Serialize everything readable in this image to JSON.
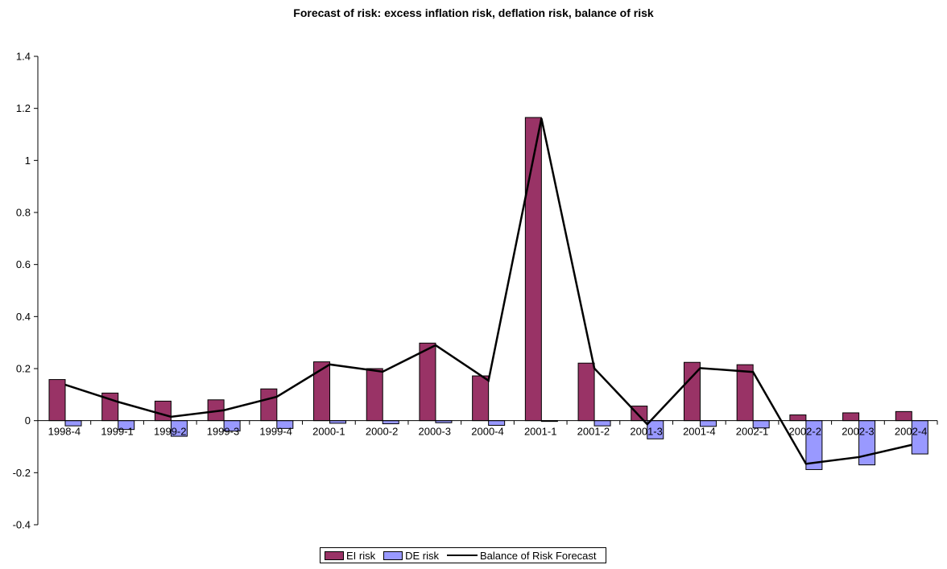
{
  "chart_data": {
    "type": "bar",
    "title": "Forecast of risk: excess inflation risk, deflation risk, balance of risk",
    "xlabel": "",
    "ylabel": "",
    "ylim": [
      -0.4,
      1.4
    ],
    "yticks": [
      -0.4,
      -0.2,
      0,
      0.2,
      0.4,
      0.6,
      0.8,
      1,
      1.2,
      1.4
    ],
    "ytick_labels": [
      "-0.4",
      "-0.2",
      "0",
      "0.2",
      "0.4",
      "0.6",
      "0.8",
      "1",
      "1.2",
      "1.4"
    ],
    "categories": [
      "1998-4",
      "1999-1",
      "1999-2",
      "1999-3",
      "1999-4",
      "2000-1",
      "2000-2",
      "2000-3",
      "2000-4",
      "2001-1",
      "2001-2",
      "2001-3",
      "2001-4",
      "2002-1",
      "2002-2",
      "2002-3",
      "2002-4"
    ],
    "series": [
      {
        "name": "EI risk",
        "kind": "bar",
        "color": "#993366",
        "values": [
          0.158,
          0.106,
          0.075,
          0.08,
          0.122,
          0.226,
          0.2,
          0.298,
          0.172,
          1.165,
          0.221,
          0.056,
          0.224,
          0.215,
          0.022,
          0.03,
          0.035
        ]
      },
      {
        "name": "DE risk",
        "kind": "bar",
        "color": "#9999ff",
        "values": [
          -0.02,
          -0.034,
          -0.06,
          -0.04,
          -0.03,
          -0.01,
          -0.012,
          -0.008,
          -0.018,
          -0.003,
          -0.02,
          -0.07,
          -0.022,
          -0.028,
          -0.188,
          -0.17,
          -0.128
        ]
      },
      {
        "name": "Balance of Risk Forecast",
        "kind": "line",
        "color": "#000000",
        "values": [
          0.138,
          0.072,
          0.015,
          0.04,
          0.092,
          0.216,
          0.188,
          0.29,
          0.154,
          1.162,
          0.201,
          -0.014,
          0.202,
          0.187,
          -0.166,
          -0.14,
          -0.093
        ]
      }
    ],
    "grid": false,
    "legend_position": "bottom"
  }
}
